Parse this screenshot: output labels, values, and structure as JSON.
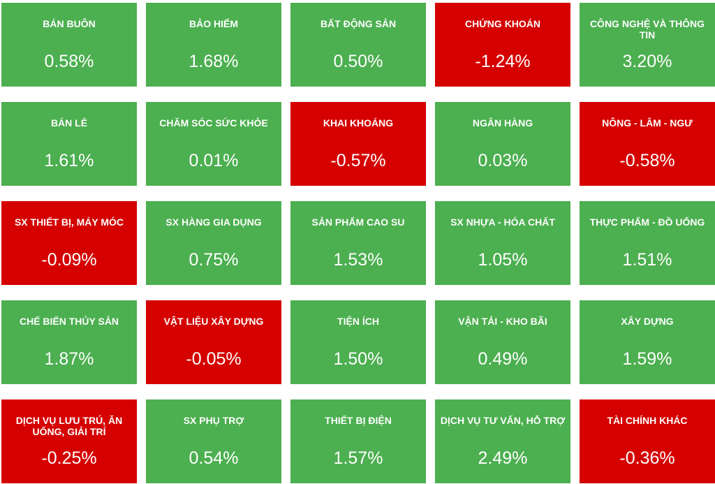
{
  "chart_data": {
    "type": "table",
    "colors": {
      "positive": "#4caf50",
      "negative": "#d50000",
      "text": "#ffffff"
    },
    "tiles": [
      {
        "name": "BÁN BUÔN",
        "value": 0.58,
        "label": "0.58%"
      },
      {
        "name": "BẢO HIỂM",
        "value": 1.68,
        "label": "1.68%"
      },
      {
        "name": "BẤT ĐỘNG SẢN",
        "value": 0.5,
        "label": "0.50%"
      },
      {
        "name": "CHỨNG KHOÁN",
        "value": -1.24,
        "label": "-1.24%"
      },
      {
        "name": "CÔNG NGHỆ VÀ THÔNG TIN",
        "value": 3.2,
        "label": "3.20%"
      },
      {
        "name": "BÁN LẺ",
        "value": 1.61,
        "label": "1.61%"
      },
      {
        "name": "CHĂM SÓC SỨC KHỎE",
        "value": 0.01,
        "label": "0.01%"
      },
      {
        "name": "KHAI KHOÁNG",
        "value": -0.57,
        "label": "-0.57%"
      },
      {
        "name": "NGÂN HÀNG",
        "value": 0.03,
        "label": "0.03%"
      },
      {
        "name": "NÔNG - LÂM - NGƯ",
        "value": -0.58,
        "label": "-0.58%"
      },
      {
        "name": "SX THIẾT BỊ, MÁY MÓC",
        "value": -0.09,
        "label": "-0.09%"
      },
      {
        "name": "SX HÀNG GIA DỤNG",
        "value": 0.75,
        "label": "0.75%"
      },
      {
        "name": "SẢN PHẨM CAO SU",
        "value": 1.53,
        "label": "1.53%"
      },
      {
        "name": "SX NHỰA - HÓA CHẤT",
        "value": 1.05,
        "label": "1.05%"
      },
      {
        "name": "THỰC PHẨM - ĐỒ UỐNG",
        "value": 1.51,
        "label": "1.51%"
      },
      {
        "name": "CHẾ BIẾN THỦY SẢN",
        "value": 1.87,
        "label": "1.87%"
      },
      {
        "name": "VẬT LIỆU XÂY DỰNG",
        "value": -0.05,
        "label": "-0.05%"
      },
      {
        "name": "TIỆN ÍCH",
        "value": 1.5,
        "label": "1.50%"
      },
      {
        "name": "VẬN TẢI - KHO BÃI",
        "value": 0.49,
        "label": "0.49%"
      },
      {
        "name": "XÂY DỰNG",
        "value": 1.59,
        "label": "1.59%"
      },
      {
        "name": "DỊCH VỤ LƯU TRÚ, ĂN UỐNG, GIẢI TRÍ",
        "value": -0.25,
        "label": "-0.25%"
      },
      {
        "name": "SX PHỤ TRỢ",
        "value": 0.54,
        "label": "0.54%"
      },
      {
        "name": "THIẾT BỊ ĐIỆN",
        "value": 1.57,
        "label": "1.57%"
      },
      {
        "name": "DỊCH VỤ TƯ VẤN, HỖ TRỢ",
        "value": 2.49,
        "label": "2.49%"
      },
      {
        "name": "TÀI CHÍNH KHÁC",
        "value": -0.36,
        "label": "-0.36%"
      }
    ]
  }
}
